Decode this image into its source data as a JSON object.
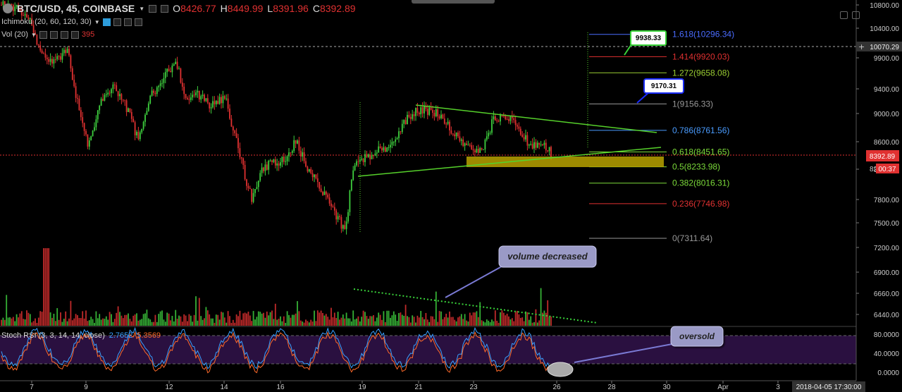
{
  "header": {
    "symbol": "BTC/USD, 45, COINBASE",
    "ohlc": [
      {
        "k": "O",
        "v": "8426.77"
      },
      {
        "k": "H",
        "v": "8449.99"
      },
      {
        "k": "L",
        "v": "8391.96"
      },
      {
        "k": "C",
        "v": "8392.89"
      }
    ],
    "ichimoku": "Ichimoku (20, 60, 120, 30)",
    "vol_label": "Vol (20)",
    "vol_value": "395"
  },
  "stoch": {
    "label": "Stoch RSI (3, 3, 14, 14, close)",
    "k_value": "2.7652",
    "d_value": "5.3569"
  },
  "chart_data": {
    "type": "candlestick",
    "symbol": "BTC/USD",
    "interval": "45",
    "exchange": "COINBASE",
    "y_ticks": [
      "10800.00",
      "10400.00",
      "9900.00",
      "9400.00",
      "9000.00",
      "8600.00",
      "8200.00",
      "7800.00",
      "7500.00",
      "7200.00",
      "6900.00",
      "6660.00",
      "6440.00"
    ],
    "stoch_ticks": [
      "80.0000",
      "40.0000",
      "0.0000"
    ],
    "x_ticks": [
      "7",
      "9",
      "12",
      "14",
      "16",
      "19",
      "21",
      "23",
      "26",
      "28",
      "30",
      "Apr",
      "3"
    ],
    "price_label": "8392.89",
    "price_label_2": "00:37",
    "price_label_2_prefix": "82",
    "crosshair_price": "10070.29",
    "crosshair_time": "2018-04-05 17:30:00",
    "fib_levels": [
      {
        "ratio": "1.618",
        "price": 10296.34,
        "label": "1.618(10296.34)",
        "color": "#4a6cff"
      },
      {
        "ratio": "1.414",
        "price": 9920.03,
        "label": "1.414(9920.03)",
        "color": "#e03131"
      },
      {
        "ratio": "1.272",
        "price": 9658.08,
        "label": "1.272(9658.08)",
        "color": "#9acd32"
      },
      {
        "ratio": "1",
        "price": 9156.33,
        "label": "1(9156.33)",
        "color": "#999999"
      },
      {
        "ratio": "0.786",
        "price": 8761.56,
        "label": "0.786(8761.56)",
        "color": "#4a9cff"
      },
      {
        "ratio": "0.618",
        "price": 8451.65,
        "label": "0.618(8451.65)",
        "color": "#7cdb3a"
      },
      {
        "ratio": "0.5",
        "price": 8233.98,
        "label": "0.5(8233.98)",
        "color": "#7cdb3a"
      },
      {
        "ratio": "0.382",
        "price": 8016.31,
        "label": "0.382(8016.31)",
        "color": "#7cdb3a"
      },
      {
        "ratio": "0.236",
        "price": 7746.98,
        "label": "0.236(7746.98)",
        "color": "#e03131"
      },
      {
        "ratio": "0",
        "price": 7311.64,
        "label": "0(7311.64)",
        "color": "#999999"
      }
    ],
    "callouts": [
      {
        "text": "9938.33",
        "color": "#3ad43a"
      },
      {
        "text": "9170.31",
        "color": "#1a2cff"
      }
    ],
    "annotations": [
      "volume decreased",
      "oversold"
    ],
    "colors": {
      "up": "#3ecf3e",
      "down": "#e03131",
      "bg": "#000000",
      "stoch_bg": "#2a1040",
      "support_box": "#b8a200"
    }
  }
}
